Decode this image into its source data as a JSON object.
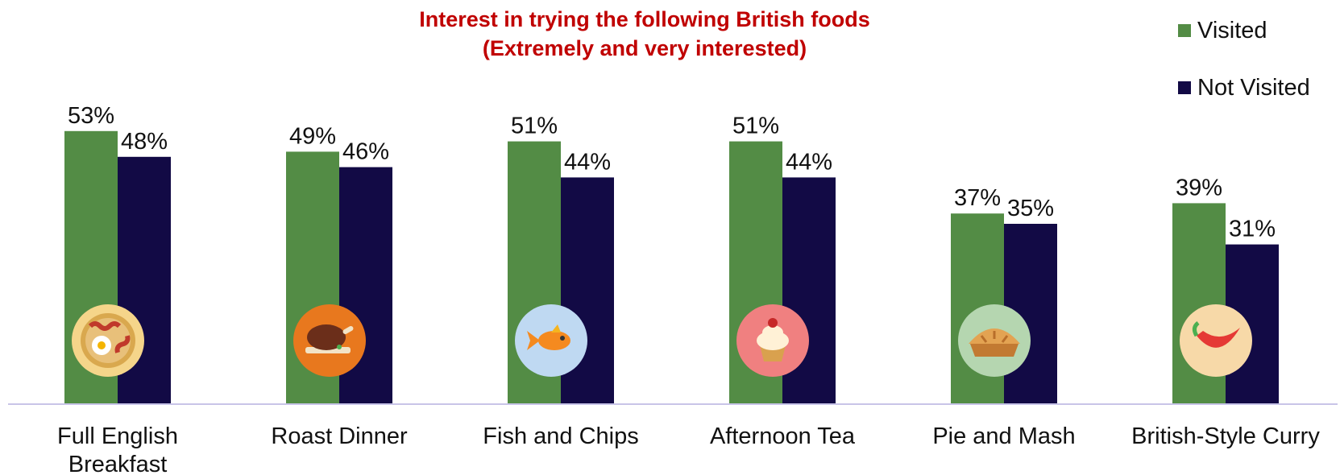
{
  "chart_data": {
    "type": "bar",
    "title_lines": [
      "Interest in trying the following British foods",
      "(Extremely and very interested)"
    ],
    "categories": [
      [
        "Full English",
        "Breakfast"
      ],
      [
        "Roast Dinner"
      ],
      [
        "Fish and Chips"
      ],
      [
        "Afternoon Tea"
      ],
      [
        "Pie and Mash"
      ],
      [
        "British-Style Curry"
      ]
    ],
    "series": [
      {
        "name": "Visited",
        "color": "#538C45",
        "values": [
          53,
          49,
          51,
          51,
          37,
          39
        ],
        "labels": [
          "53%",
          "49%",
          "51%",
          "51%",
          "37%",
          "39%"
        ]
      },
      {
        "name": "Not Visited",
        "color": "#120A45",
        "values": [
          48,
          46,
          44,
          44,
          35,
          31
        ],
        "labels": [
          "48%",
          "46%",
          "44%",
          "44%",
          "35%",
          "31%"
        ]
      }
    ],
    "ylim": [
      0,
      75
    ],
    "grid": false,
    "legend_position": "top-right",
    "icons": [
      {
        "name": "breakfast-plate-icon",
        "bg": "#F5D58A"
      },
      {
        "name": "roast-chicken-icon",
        "bg": "#E8781E"
      },
      {
        "name": "goldfish-icon",
        "bg": "#BFD9F2"
      },
      {
        "name": "cupcake-icon",
        "bg": "#F08080"
      },
      {
        "name": "pie-icon",
        "bg": "#B5D6B0"
      },
      {
        "name": "chili-pepper-icon",
        "bg": "#F7D9A8"
      }
    ]
  }
}
